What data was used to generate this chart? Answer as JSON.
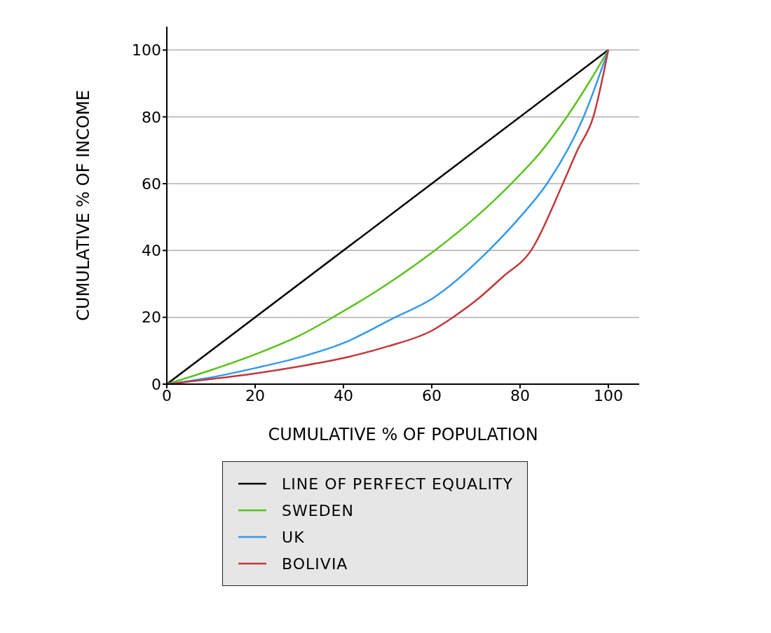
{
  "chart_data": {
    "type": "line",
    "xlabel": "CUMULATIVE % OF POPULATION",
    "ylabel": "CUMULATIVE % OF INCOME",
    "xlim": [
      0,
      107
    ],
    "ylim": [
      0,
      107
    ],
    "xticks": [
      0,
      20,
      40,
      60,
      80,
      100
    ],
    "yticks": [
      0,
      20,
      40,
      60,
      80,
      100
    ],
    "grid": "y",
    "legend": "bottom",
    "marker": "none",
    "series": [
      {
        "name": "LINE OF PERFECT EQUALITY",
        "color": "#000000",
        "x": [
          0,
          100
        ],
        "values": [
          0,
          100
        ]
      },
      {
        "name": "SWEDEN",
        "color": "#5ac21e",
        "x": [
          0,
          10,
          20,
          30,
          37.6,
          50,
          60.7,
          70,
          78,
          85,
          90.6,
          95.5,
          100
        ],
        "values": [
          0,
          4.2,
          8.9,
          14.5,
          20,
          30,
          40,
          50,
          60,
          70,
          80,
          90,
          100
        ]
      },
      {
        "name": "UK",
        "color": "#3399ee",
        "x": [
          0,
          10,
          20,
          30,
          40,
          51.7,
          60,
          72.9,
          80,
          86.1,
          94.4,
          100
        ],
        "values": [
          0,
          2,
          4.8,
          8,
          12.3,
          20,
          25.5,
          40,
          50,
          60,
          80,
          100
        ]
      },
      {
        "name": "BOLIVIA",
        "color": "#c0393b",
        "x": [
          0,
          10,
          20,
          30,
          40,
          50,
          60,
          64.8,
          70,
          76,
          82.5,
          89.7,
          93,
          96.6,
          100
        ],
        "values": [
          0,
          1.5,
          3.2,
          5.3,
          7.8,
          11.3,
          16,
          20,
          25,
          32,
          40,
          60,
          70,
          80,
          100
        ]
      }
    ]
  }
}
